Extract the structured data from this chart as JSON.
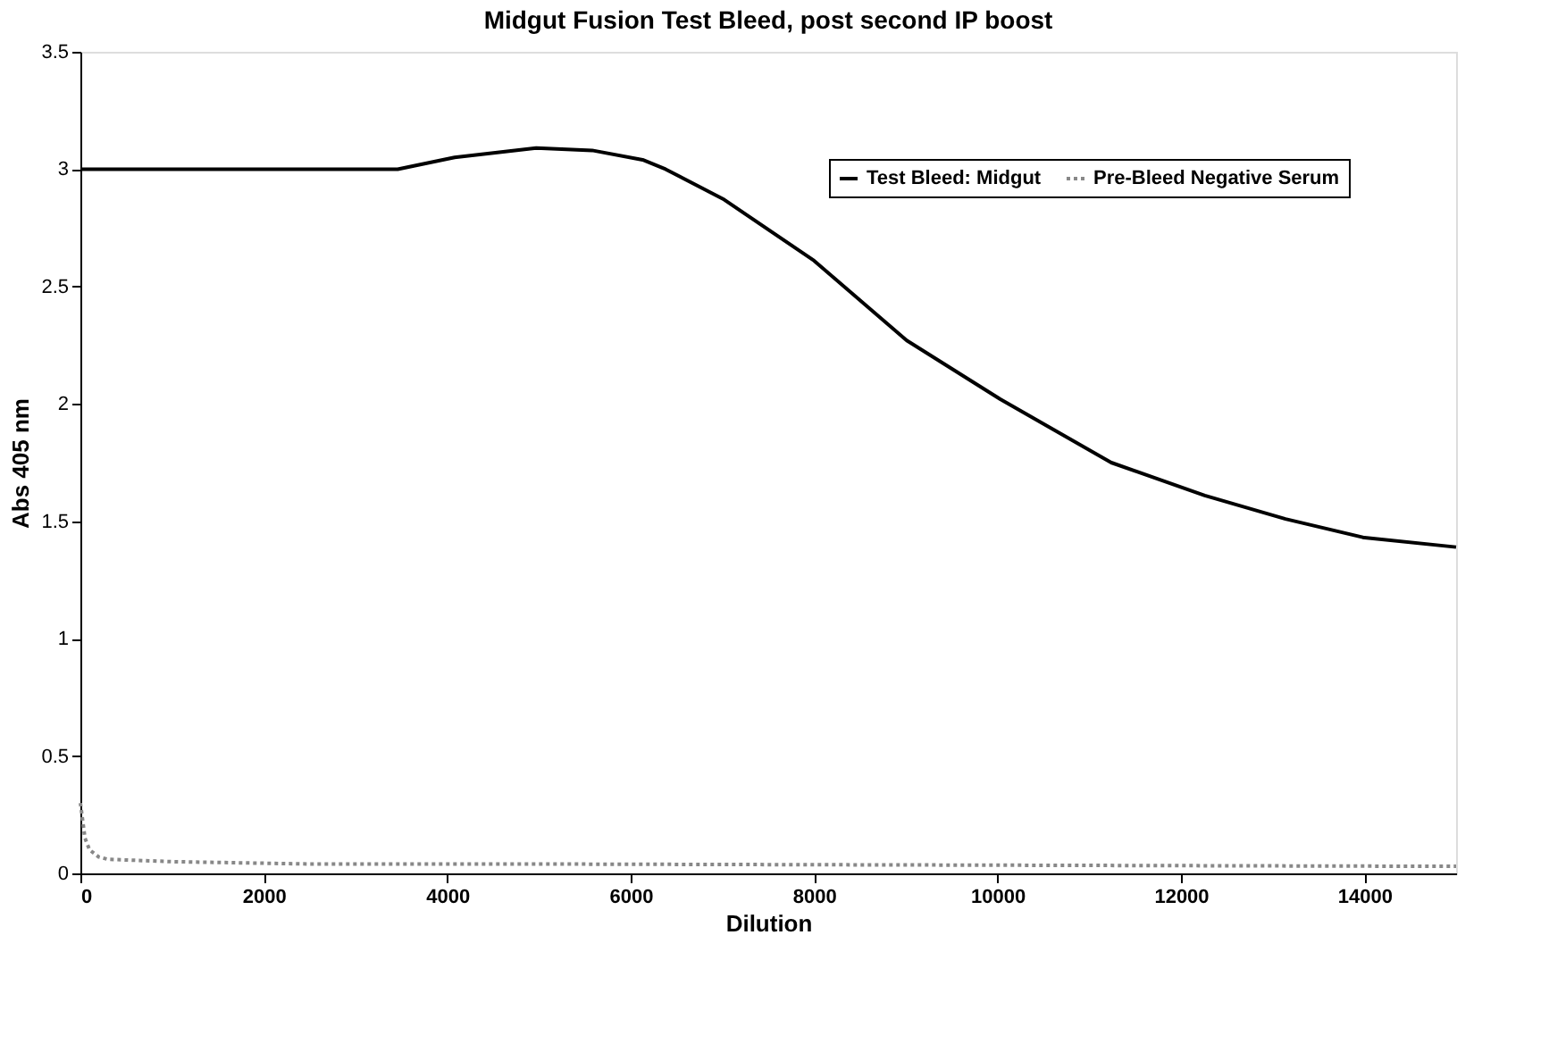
{
  "chart_data": {
    "type": "line",
    "title": "Midgut Fusion Test Bleed, post second IP boost",
    "xlabel": "Dilution",
    "ylabel": "Abs 405 nm",
    "xlim": [
      0,
      15000
    ],
    "xticks": [
      0,
      2000,
      4000,
      6000,
      8000,
      10000,
      12000,
      14000
    ],
    "ylim": [
      0,
      3.5
    ],
    "yticks": [
      0,
      0.5,
      1,
      1.5,
      2,
      2.5,
      3,
      3.5
    ],
    "grid": false,
    "legend": "top right",
    "marker": "none",
    "series": [
      {
        "name": "Test Bleed: Midgut",
        "color": "#000000",
        "line_style": "solid",
        "x": [
          0,
          1000,
          2000,
          3000,
          3460,
          4080,
          4970,
          5580,
          6130,
          6380,
          7020,
          8000,
          9010,
          10030,
          11240,
          12260,
          13140,
          14000,
          15000
        ],
        "values": [
          3.0,
          3.0,
          3.0,
          3.0,
          3.0,
          3.05,
          3.09,
          3.08,
          3.04,
          3.0,
          2.87,
          2.61,
          2.27,
          2.02,
          1.75,
          1.61,
          1.51,
          1.43,
          1.39
        ]
      },
      {
        "name": "Pre-Bleed Negative Serum",
        "color": "#888888",
        "line_style": "dotted",
        "x": [
          0,
          50,
          100,
          200,
          300,
          1000,
          2500,
          5000,
          10000,
          15000
        ],
        "values": [
          0.3,
          0.15,
          0.1,
          0.07,
          0.06,
          0.05,
          0.04,
          0.04,
          0.035,
          0.03
        ]
      }
    ]
  }
}
